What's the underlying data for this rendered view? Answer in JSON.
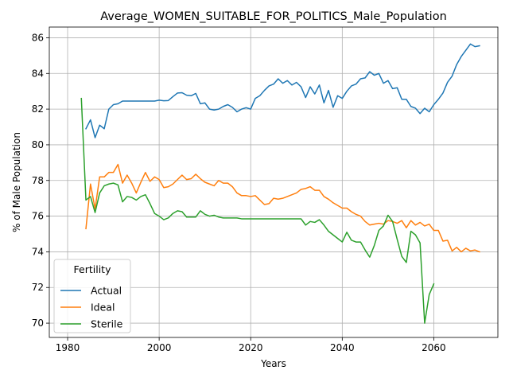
{
  "chart_data": {
    "type": "line",
    "title": "Average_WOMEN_SUITABLE_FOR_POLITICS_Male_Population",
    "xlabel": "Years",
    "ylabel": "% of Male Population",
    "xlim": [
      1976,
      2074
    ],
    "ylim": [
      69.2,
      86.6
    ],
    "xticks": [
      1980,
      2000,
      2020,
      2040,
      2060
    ],
    "yticks": [
      70,
      72,
      74,
      76,
      78,
      80,
      82,
      84,
      86
    ],
    "grid": true,
    "legend": {
      "title": "Fertility",
      "placement": "lower-left"
    },
    "series": [
      {
        "name": "Actual",
        "color": "#1f77b4",
        "x": [
          1984,
          1985,
          1986,
          1987,
          1988,
          1989,
          1990,
          1991,
          1992,
          1993,
          1994,
          1995,
          1996,
          1997,
          1998,
          1999,
          2000,
          2001,
          2002,
          2003,
          2004,
          2005,
          2006,
          2007,
          2008,
          2009,
          2010,
          2011,
          2012,
          2013,
          2014,
          2015,
          2016,
          2017,
          2018,
          2019,
          2020,
          2021,
          2022,
          2023,
          2024,
          2025,
          2026,
          2027,
          2028,
          2029,
          2030,
          2031,
          2032,
          2033,
          2034,
          2035,
          2036,
          2037,
          2038,
          2039,
          2040,
          2041,
          2042,
          2043,
          2044,
          2045,
          2046,
          2047,
          2048,
          2049,
          2050,
          2051,
          2052,
          2053,
          2054,
          2055,
          2056,
          2057,
          2058,
          2059,
          2060,
          2061,
          2062,
          2063,
          2064,
          2065,
          2066,
          2067,
          2068,
          2069,
          2070
        ],
        "values": [
          80.9,
          81.4,
          80.4,
          81.1,
          80.9,
          82.0,
          82.25,
          82.3,
          82.45,
          82.45,
          82.45,
          82.45,
          82.45,
          82.45,
          82.45,
          82.45,
          82.5,
          82.47,
          82.48,
          82.7,
          82.9,
          82.92,
          82.78,
          82.75,
          82.88,
          82.3,
          82.35,
          82.0,
          81.95,
          82.0,
          82.15,
          82.25,
          82.1,
          81.85,
          82.0,
          82.08,
          82.0,
          82.6,
          82.75,
          83.05,
          83.3,
          83.4,
          83.7,
          83.45,
          83.6,
          83.35,
          83.5,
          83.25,
          82.65,
          83.25,
          82.85,
          83.35,
          82.35,
          83.05,
          82.1,
          82.75,
          82.6,
          83.0,
          83.3,
          83.4,
          83.7,
          83.75,
          84.1,
          83.9,
          84.0,
          83.45,
          83.6,
          83.15,
          83.2,
          82.55,
          82.55,
          82.15,
          82.05,
          81.75,
          82.05,
          81.85,
          82.25,
          82.55,
          82.9,
          83.5,
          83.85,
          84.5,
          84.95,
          85.3,
          85.65,
          85.5,
          85.55
        ]
      },
      {
        "name": "Ideal",
        "color": "#ff7f0e",
        "x": [
          1984,
          1985,
          1986,
          1987,
          1988,
          1989,
          1990,
          1991,
          1992,
          1993,
          1994,
          1995,
          1996,
          1997,
          1998,
          1999,
          2000,
          2001,
          2002,
          2003,
          2004,
          2005,
          2006,
          2007,
          2008,
          2009,
          2010,
          2011,
          2012,
          2013,
          2014,
          2015,
          2016,
          2017,
          2018,
          2019,
          2020,
          2021,
          2022,
          2023,
          2024,
          2025,
          2026,
          2027,
          2028,
          2029,
          2030,
          2031,
          2032,
          2033,
          2034,
          2035,
          2036,
          2037,
          2038,
          2039,
          2040,
          2041,
          2042,
          2043,
          2044,
          2045,
          2046,
          2047,
          2048,
          2049,
          2050,
          2051,
          2052,
          2053,
          2054,
          2055,
          2056,
          2057,
          2058,
          2059,
          2060,
          2061,
          2062,
          2063,
          2064,
          2065,
          2066,
          2067,
          2068,
          2069,
          2070
        ],
        "values": [
          75.3,
          77.8,
          76.4,
          78.2,
          78.2,
          78.45,
          78.45,
          78.9,
          77.85,
          78.3,
          77.85,
          77.3,
          77.9,
          78.45,
          77.95,
          78.2,
          78.05,
          77.6,
          77.65,
          77.8,
          78.05,
          78.3,
          78.05,
          78.1,
          78.35,
          78.1,
          77.9,
          77.8,
          77.7,
          78.0,
          77.85,
          77.85,
          77.65,
          77.3,
          77.15,
          77.15,
          77.1,
          77.15,
          76.9,
          76.65,
          76.7,
          77.0,
          76.95,
          77.0,
          77.1,
          77.2,
          77.3,
          77.5,
          77.55,
          77.65,
          77.45,
          77.45,
          77.1,
          76.95,
          76.75,
          76.6,
          76.45,
          76.45,
          76.25,
          76.1,
          76.0,
          75.7,
          75.5,
          75.55,
          75.6,
          75.55,
          75.75,
          75.7,
          75.6,
          75.75,
          75.35,
          75.75,
          75.5,
          75.65,
          75.45,
          75.55,
          75.2,
          75.2,
          74.6,
          74.65,
          74.05,
          74.25,
          74.0,
          74.2,
          74.05,
          74.1,
          74.0
        ]
      },
      {
        "name": "Sterile",
        "color": "#2ca02c",
        "x": [
          1983,
          1984,
          1985,
          1986,
          1987,
          1988,
          1989,
          1990,
          1991,
          1992,
          1993,
          1994,
          1995,
          1996,
          1997,
          1998,
          1999,
          2000,
          2001,
          2002,
          2003,
          2004,
          2005,
          2006,
          2007,
          2008,
          2009,
          2010,
          2011,
          2012,
          2013,
          2014,
          2015,
          2016,
          2017,
          2018,
          2019,
          2020,
          2021,
          2022,
          2023,
          2024,
          2025,
          2026,
          2027,
          2028,
          2029,
          2030,
          2031,
          2032,
          2033,
          2034,
          2035,
          2036,
          2037,
          2038,
          2039,
          2040,
          2041,
          2042,
          2043,
          2044,
          2045,
          2046,
          2047,
          2048,
          2049,
          2050,
          2051,
          2052,
          2053,
          2054,
          2055,
          2056,
          2057,
          2058,
          2059,
          2060
        ],
        "values": [
          82.6,
          76.9,
          77.1,
          76.2,
          77.3,
          77.7,
          77.8,
          77.85,
          77.75,
          76.8,
          77.1,
          77.05,
          76.9,
          77.1,
          77.2,
          76.7,
          76.15,
          76.0,
          75.8,
          75.9,
          76.15,
          76.3,
          76.25,
          75.95,
          75.95,
          75.95,
          76.3,
          76.1,
          76.0,
          76.05,
          75.95,
          75.9,
          75.9,
          75.9,
          75.9,
          75.85,
          75.85,
          75.85,
          75.85,
          75.85,
          75.85,
          75.85,
          75.85,
          75.85,
          75.85,
          75.85,
          75.85,
          75.85,
          75.85,
          75.5,
          75.7,
          75.65,
          75.8,
          75.5,
          75.15,
          74.95,
          74.75,
          74.55,
          75.1,
          74.65,
          74.55,
          74.55,
          74.1,
          73.7,
          74.35,
          75.2,
          75.45,
          76.05,
          75.7,
          74.7,
          73.75,
          73.4,
          75.15,
          74.95,
          74.5,
          70.0,
          71.6,
          72.2
        ]
      }
    ]
  }
}
